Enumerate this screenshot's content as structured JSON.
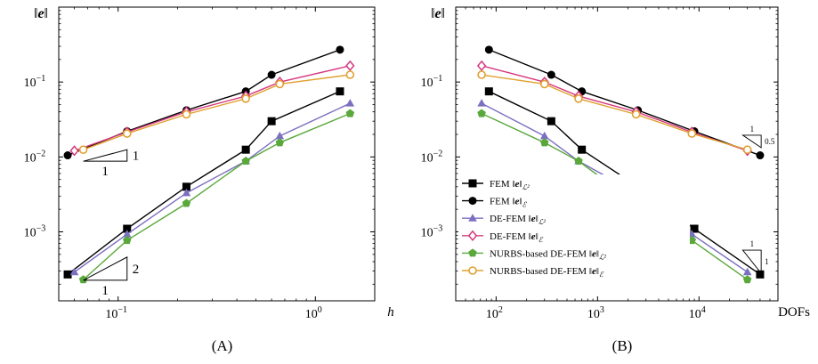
{
  "chart_data": [
    {
      "type": "line",
      "caption": "(A)",
      "ylabel": "‖e‖",
      "xlabel": "h",
      "xscale": "log",
      "yscale": "log",
      "xlim": [
        0.05,
        2.0
      ],
      "ylim": [
        0.00012,
        1.0
      ],
      "xticks": [
        {
          "value": 0.1,
          "base": "10",
          "exp": "−1"
        },
        {
          "value": 1,
          "base": "10",
          "exp": "0"
        }
      ],
      "yticks": [
        {
          "value": 0.001,
          "base": "10",
          "exp": "−3"
        },
        {
          "value": 0.01,
          "base": "10",
          "exp": "−2"
        },
        {
          "value": 0.1,
          "base": "10",
          "exp": "−1"
        }
      ],
      "slope_triangles": [
        {
          "corner": [
            0.111,
            0.0125
          ],
          "run": [
            0.0666,
            0.111
          ],
          "rise_label": "1",
          "run_label": "1",
          "style": "upper-right",
          "label_size": "large"
        },
        {
          "corner": [
            0.111,
            0.00046
          ],
          "run": [
            0.0666,
            0.111
          ],
          "rise_label": "2",
          "run_label": "1",
          "style": "upper-right",
          "label_size": "large"
        }
      ],
      "series": [
        {
          "name": "FEM ‖e‖_L²",
          "color": "#000000",
          "marker": "square",
          "x": [
            0.0555,
            0.111,
            0.222,
            0.444,
            0.6,
            1.333
          ],
          "y": [
            0.00027,
            0.0011,
            0.004,
            0.0125,
            0.03,
            0.075
          ]
        },
        {
          "name": "FEM ‖e‖_E",
          "color": "#000000",
          "marker": "circle",
          "x": [
            0.0555,
            0.111,
            0.222,
            0.444,
            0.6,
            1.333
          ],
          "y": [
            0.0105,
            0.022,
            0.042,
            0.075,
            0.125,
            0.27
          ]
        },
        {
          "name": "DE-FEM ‖e‖_L²",
          "color": "#7b6fc0",
          "marker": "triangle",
          "x": [
            0.06,
            0.111,
            0.222,
            0.444,
            0.66,
            1.5
          ],
          "y": [
            0.00029,
            0.00093,
            0.0033,
            0.0088,
            0.019,
            0.052
          ]
        },
        {
          "name": "DE-FEM ‖e‖_E",
          "color": "#d6387f",
          "marker": "diamond",
          "x": [
            0.06,
            0.111,
            0.222,
            0.444,
            0.66,
            1.5
          ],
          "y": [
            0.0121,
            0.0215,
            0.04,
            0.065,
            0.1,
            0.165
          ]
        },
        {
          "name": "NURBS-based DE-FEM ‖e‖_L²",
          "color": "#5aa83b",
          "marker": "pentagon",
          "x": [
            0.0666,
            0.111,
            0.222,
            0.444,
            0.66,
            1.5
          ],
          "y": [
            0.00023,
            0.00077,
            0.0024,
            0.0088,
            0.0155,
            0.038
          ]
        },
        {
          "name": "NURBS-based DE-FEM ‖e‖_E",
          "color": "#e0a030",
          "marker": "circle-open",
          "x": [
            0.0666,
            0.111,
            0.222,
            0.444,
            0.66,
            1.5
          ],
          "y": [
            0.0125,
            0.0205,
            0.037,
            0.06,
            0.094,
            0.125
          ]
        }
      ]
    },
    {
      "type": "line",
      "caption": "(B)",
      "ylabel": "‖e‖",
      "xlabel": "DOFs",
      "xscale": "log",
      "yscale": "log",
      "xlim": [
        40,
        60000
      ],
      "ylim": [
        0.00012,
        1.0
      ],
      "xticks": [
        {
          "value": 100,
          "base": "10",
          "exp": "2"
        },
        {
          "value": 1000,
          "base": "10",
          "exp": "3"
        },
        {
          "value": 10000,
          "base": "10",
          "exp": "4"
        }
      ],
      "yticks": [
        {
          "value": 0.001,
          "base": "10",
          "exp": "−3"
        },
        {
          "value": 0.01,
          "base": "10",
          "exp": "−2"
        },
        {
          "value": 0.1,
          "base": "10",
          "exp": "−1"
        }
      ],
      "slope_triangles": [
        {
          "corner": [
            27000,
            0.0195
          ],
          "run": [
            27000,
            41000
          ],
          "rise_label": "0.5",
          "run_label": "1",
          "style": "lower-left",
          "label_size": "small"
        },
        {
          "corner": [
            27000,
            0.00057
          ],
          "run": [
            27000,
            41000
          ],
          "rise_label": "1",
          "run_label": "1",
          "style": "lower-left",
          "label_size": "small"
        }
      ],
      "legend": {
        "position": "lower-left"
      },
      "series": [
        {
          "name": "FEM ‖e‖_L²",
          "color": "#000000",
          "marker": "square",
          "x": [
            85,
            350,
            700,
            2500,
            9000,
            40000
          ],
          "y": [
            0.075,
            0.03,
            0.0125,
            0.004,
            0.0011,
            0.00027
          ]
        },
        {
          "name": "FEM ‖e‖_E",
          "color": "#000000",
          "marker": "circle",
          "x": [
            85,
            350,
            700,
            2500,
            9000,
            40000
          ],
          "y": [
            0.27,
            0.125,
            0.075,
            0.042,
            0.022,
            0.0105
          ]
        },
        {
          "name": "DE-FEM ‖e‖_L²",
          "color": "#7b6fc0",
          "marker": "triangle",
          "x": [
            72,
            300,
            650,
            2400,
            8500,
            30000
          ],
          "y": [
            0.052,
            0.019,
            0.0088,
            0.0033,
            0.00093,
            0.00029
          ]
        },
        {
          "name": "DE-FEM ‖e‖_E",
          "color": "#d6387f",
          "marker": "diamond",
          "x": [
            72,
            300,
            650,
            2400,
            8500,
            30000
          ],
          "y": [
            0.165,
            0.1,
            0.065,
            0.04,
            0.0215,
            0.0121
          ]
        },
        {
          "name": "NURBS-based DE-FEM ‖e‖_L²",
          "color": "#5aa83b",
          "marker": "pentagon",
          "x": [
            72,
            300,
            650,
            2400,
            8500,
            30000
          ],
          "y": [
            0.038,
            0.0155,
            0.0088,
            0.0024,
            0.00077,
            0.00023
          ]
        },
        {
          "name": "NURBS-based DE-FEM ‖e‖_E",
          "color": "#e0a030",
          "marker": "circle-open",
          "x": [
            72,
            300,
            650,
            2400,
            8500,
            30000
          ],
          "y": [
            0.125,
            0.094,
            0.06,
            0.037,
            0.0205,
            0.0125
          ]
        }
      ]
    }
  ]
}
